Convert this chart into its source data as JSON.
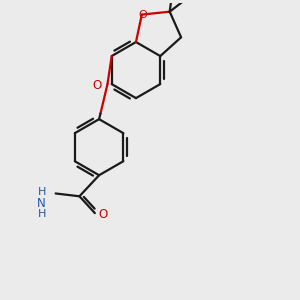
{
  "bg_color": "#ebebeb",
  "bond_color": "#1a1a1a",
  "o_color": "#cc0000",
  "n_color": "#2255aa",
  "lw": 1.6,
  "figsize": [
    3.0,
    3.0
  ],
  "dpi": 100,
  "xlim": [
    0,
    10
  ],
  "ylim": [
    0,
    10.5
  ]
}
